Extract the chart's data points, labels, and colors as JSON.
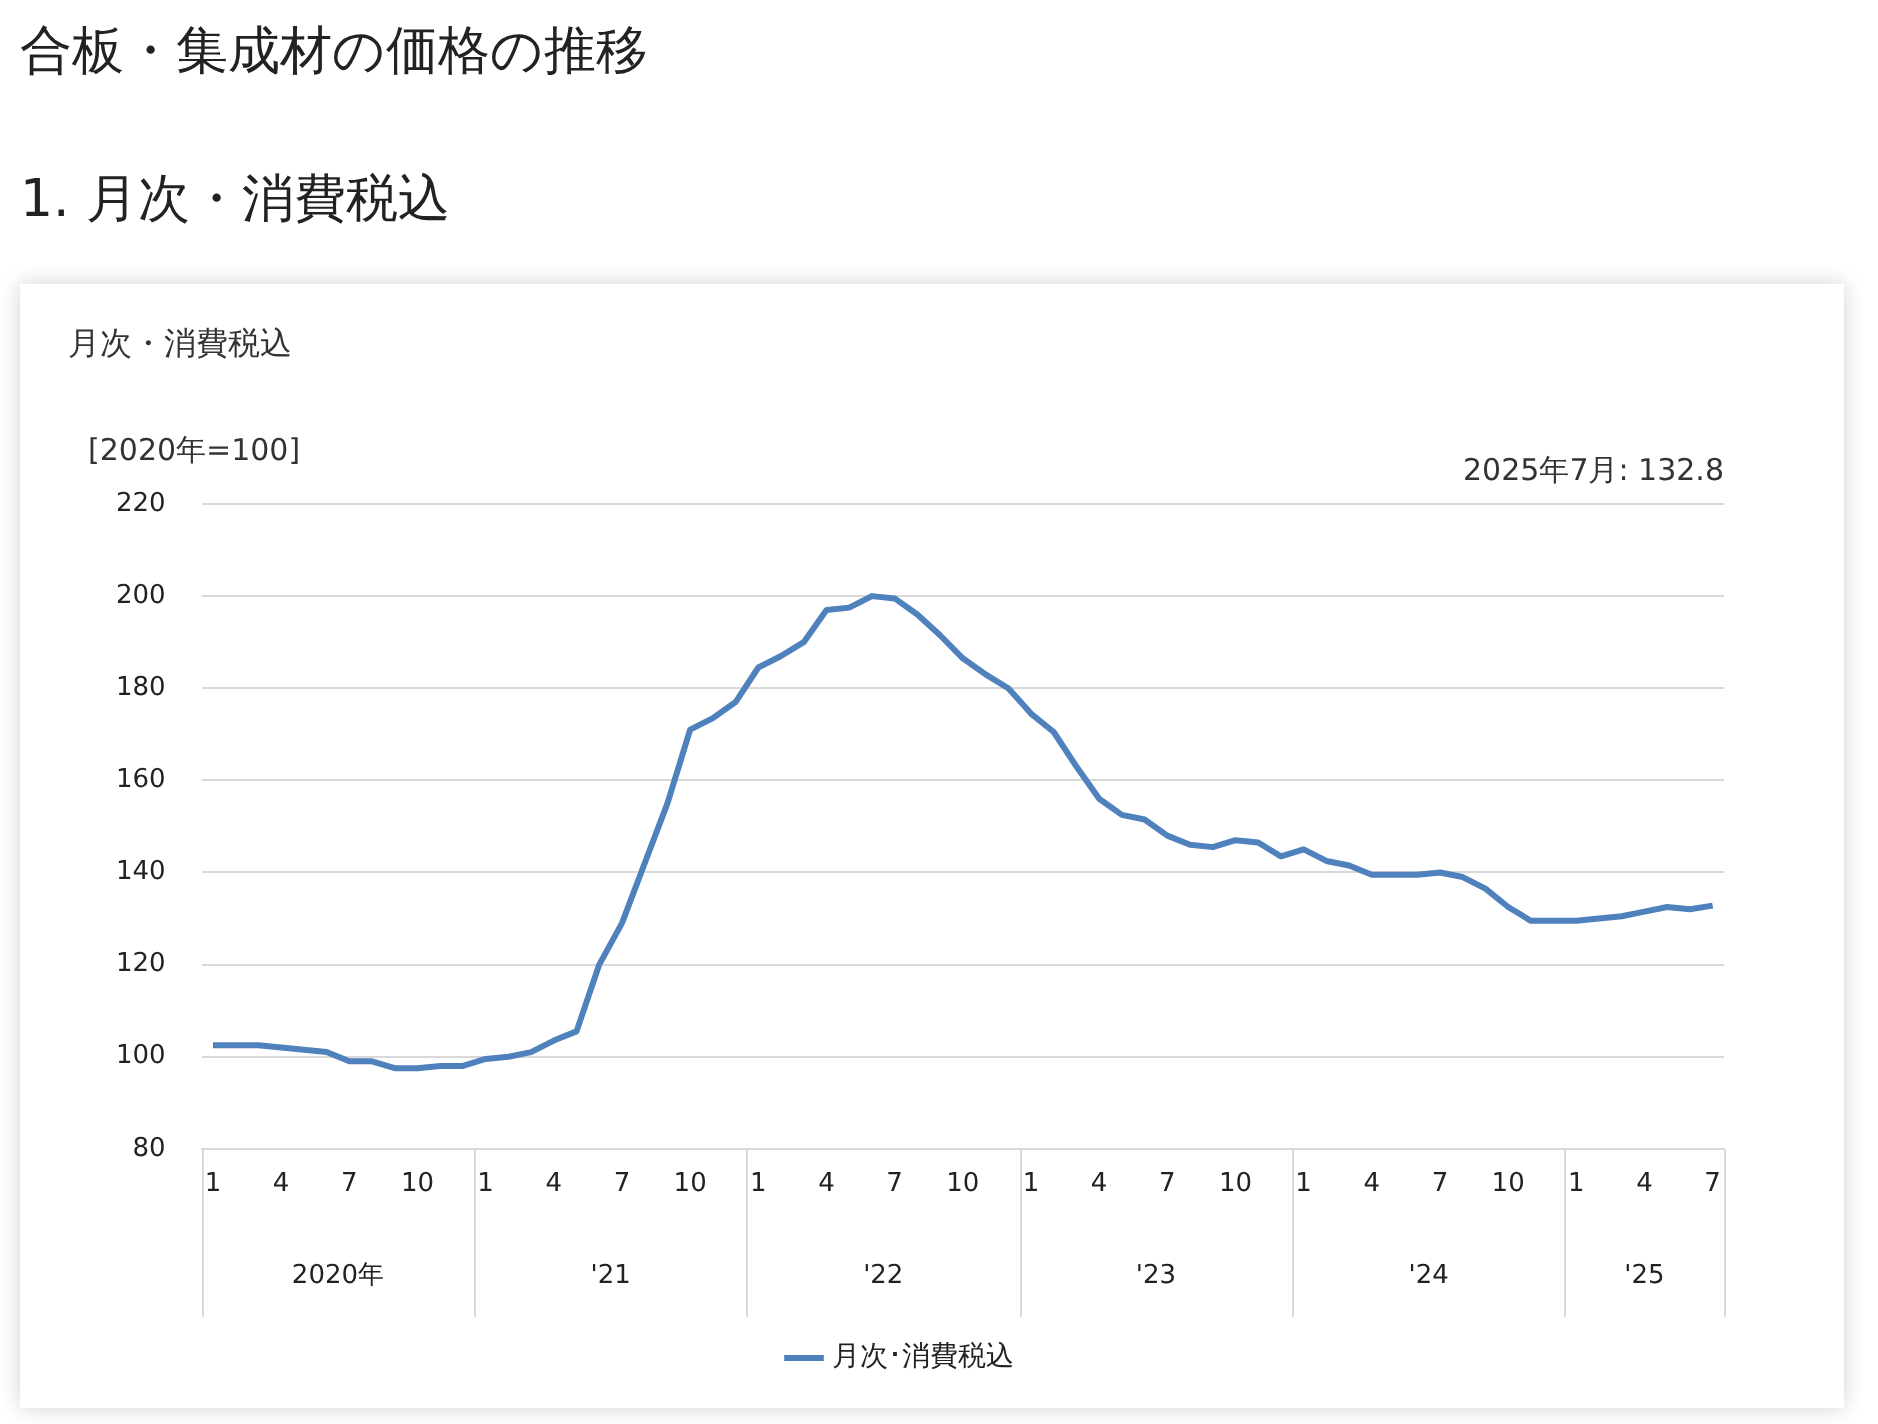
{
  "chart_data": {
    "type": "line",
    "title": "合板・集成材の価格の推移",
    "subtitle": "1. 月次・消費税込",
    "ylabel": "[2020年=100]",
    "annotations": [
      "月次・消費税込",
      "2025年7月: 132.8",
      "2020年",
      "'21",
      "'22",
      "'23",
      "'24",
      "'25"
    ],
    "categories": [
      "1",
      null,
      null,
      "4",
      null,
      null,
      "7",
      null,
      null,
      "10",
      null,
      null,
      "1",
      null,
      null,
      "4",
      null,
      null,
      "7",
      null,
      null,
      "10",
      null,
      null,
      "1",
      null,
      null,
      "4",
      null,
      null,
      "7",
      null,
      null,
      "10",
      null,
      null,
      "1",
      null,
      null,
      "4",
      null,
      null,
      "7",
      null,
      null,
      "10",
      null,
      null,
      "1",
      null,
      null,
      "4",
      null,
      null,
      "7",
      null,
      null,
      "10",
      null,
      null,
      "1",
      null,
      null,
      "4",
      null,
      null,
      "7"
    ],
    "series": [
      {
        "name": "月次･消費税込",
        "color": "#4f81bd",
        "values": [
          102.5,
          102.5,
          102.5,
          102,
          101.5,
          101,
          99,
          99,
          97.5,
          97.5,
          98,
          98,
          99.5,
          100,
          101,
          103.5,
          105.5,
          120,
          129,
          142,
          155,
          171,
          173.5,
          177,
          184.5,
          187,
          190,
          197,
          197.5,
          200,
          199.5,
          196,
          191.5,
          186.5,
          183,
          180,
          174.5,
          170.5,
          163,
          156,
          152.5,
          151.5,
          148,
          146,
          145.5,
          147,
          146.5,
          143.5,
          145,
          142.5,
          141.5,
          139.5,
          139.5,
          139.5,
          140,
          139,
          136.5,
          132.5,
          129.5,
          129.5,
          129.5,
          130,
          130.5,
          131.5,
          132.5,
          132,
          132.8
        ]
      }
    ],
    "ylim": [
      80,
      220
    ],
    "yticks": [
      80,
      100,
      120,
      140,
      160,
      180,
      200,
      220
    ],
    "grid": "y",
    "legend": "bottom",
    "marker": "none",
    "line_style": "solid"
  }
}
